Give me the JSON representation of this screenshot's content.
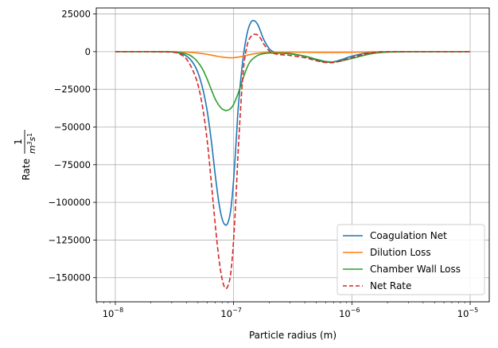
{
  "chart_data": {
    "type": "line",
    "title": "",
    "xlabel": "Particle radius (m)",
    "ylabel": "Rate",
    "ylabel_math": {
      "numerator": "1",
      "denominator_base": "m",
      "denominator_sup": "3",
      "denominator_tail": "s",
      "denominator_tail_sup": "1"
    },
    "xscale": "log",
    "xlim": [
      6.9e-09,
      1.45e-05
    ],
    "ylim": [
      -166000,
      29000
    ],
    "grid": true,
    "legend_position": "lower right",
    "xticks": [
      {
        "value": 1e-08,
        "base": "10",
        "exp": "−8"
      },
      {
        "value": 1e-07,
        "base": "10",
        "exp": "−7"
      },
      {
        "value": 1e-06,
        "base": "10",
        "exp": "−6"
      },
      {
        "value": 1e-05,
        "base": "10",
        "exp": "−5"
      }
    ],
    "yticks": [
      {
        "value": 25000,
        "label": "25000"
      },
      {
        "value": 0,
        "label": "0"
      },
      {
        "value": -25000,
        "label": "−25000"
      },
      {
        "value": -50000,
        "label": "−50000"
      },
      {
        "value": -75000,
        "label": "−75000"
      },
      {
        "value": -100000,
        "label": "−100000"
      },
      {
        "value": -125000,
        "label": "−125000"
      },
      {
        "value": -150000,
        "label": "−150000"
      }
    ],
    "series": [
      {
        "name": "Coagulation Net",
        "color": "#1f77b4",
        "dash": "solid",
        "x": [
          1e-08,
          2e-08,
          3e-08,
          3.5e-08,
          4e-08,
          4.5e-08,
          5e-08,
          5.5e-08,
          6e-08,
          6.5e-08,
          7e-08,
          7.5e-08,
          8e-08,
          8.5e-08,
          9e-08,
          9.5e-08,
          1e-07,
          1.05e-07,
          1.1e-07,
          1.2e-07,
          1.3e-07,
          1.4e-07,
          1.5e-07,
          1.6e-07,
          1.7e-07,
          1.8e-07,
          2e-07,
          2.2e-07,
          2.5e-07,
          3e-07,
          4e-07,
          5e-07,
          6e-07,
          7e-07,
          8e-07,
          1e-06,
          1.3e-06,
          1.6e-06,
          2e-06,
          3e-06,
          5e-06,
          1e-05
        ],
        "y": [
          0,
          0,
          -200,
          -1000,
          -3000,
          -7000,
          -14000,
          -25000,
          -40000,
          -60000,
          -82000,
          -100000,
          -111000,
          -115000,
          -113000,
          -104000,
          -85000,
          -60000,
          -35000,
          -5000,
          12000,
          19500,
          20500,
          18000,
          13000,
          8000,
          2000,
          -200,
          -1000,
          -1200,
          -3000,
          -5500,
          -7000,
          -6700,
          -5500,
          -3000,
          -1000,
          -300,
          -50,
          0,
          0,
          0
        ]
      },
      {
        "name": "Dilution Loss",
        "color": "#ff7f0e",
        "dash": "solid",
        "x": [
          1e-08,
          2e-08,
          3e-08,
          4e-08,
          5e-08,
          6e-08,
          7e-08,
          8e-08,
          9e-08,
          1e-07,
          1.1e-07,
          1.2e-07,
          1.4e-07,
          1.6e-07,
          2e-07,
          2.5e-07,
          3e-07,
          4e-07,
          5e-07,
          6e-07,
          7e-07,
          8e-07,
          1e-06,
          1.3e-06,
          1.6e-06,
          2e-06,
          3e-06,
          5e-06,
          1e-05
        ],
        "y": [
          0,
          0,
          -50,
          -300,
          -900,
          -1800,
          -2800,
          -3600,
          -4000,
          -4000,
          -3600,
          -3000,
          -1800,
          -1000,
          -400,
          -300,
          -300,
          -400,
          -500,
          -550,
          -550,
          -500,
          -400,
          -200,
          -80,
          -20,
          0,
          0,
          0
        ]
      },
      {
        "name": "Chamber Wall Loss",
        "color": "#2ca02c",
        "dash": "solid",
        "x": [
          1e-08,
          2e-08,
          3e-08,
          4e-08,
          4.5e-08,
          5e-08,
          5.5e-08,
          6e-08,
          6.5e-08,
          7e-08,
          7.5e-08,
          8e-08,
          8.5e-08,
          9e-08,
          9.5e-08,
          1e-07,
          1.1e-07,
          1.2e-07,
          1.3e-07,
          1.4e-07,
          1.6e-07,
          1.8e-07,
          2e-07,
          2.5e-07,
          3e-07,
          4e-07,
          5e-07,
          6e-07,
          7e-07,
          8e-07,
          1e-06,
          1.3e-06,
          1.6e-06,
          2e-06,
          3e-06,
          5e-06,
          1e-05
        ],
        "y": [
          0,
          0,
          -100,
          -1500,
          -3500,
          -7000,
          -12000,
          -18500,
          -25500,
          -31500,
          -35500,
          -38000,
          -39000,
          -38800,
          -37500,
          -35000,
          -27000,
          -18000,
          -10500,
          -6000,
          -2500,
          -1300,
          -900,
          -1000,
          -1500,
          -3000,
          -5000,
          -6500,
          -6800,
          -6300,
          -4500,
          -2200,
          -900,
          -300,
          -30,
          0,
          0
        ]
      },
      {
        "name": "Net Rate",
        "color": "#d62728",
        "dash": "dashed",
        "x": [
          1e-08,
          2e-08,
          3e-08,
          3.5e-08,
          4e-08,
          4.5e-08,
          5e-08,
          5.5e-08,
          6e-08,
          6.5e-08,
          7e-08,
          7.5e-08,
          8e-08,
          8.5e-08,
          9e-08,
          9.5e-08,
          1e-07,
          1.05e-07,
          1.1e-07,
          1.2e-07,
          1.3e-07,
          1.4e-07,
          1.5e-07,
          1.6e-07,
          1.7e-07,
          1.8e-07,
          2e-07,
          2.2e-07,
          2.5e-07,
          3e-07,
          4e-07,
          5e-07,
          6e-07,
          7e-07,
          8e-07,
          1e-06,
          1.3e-06,
          1.6e-06,
          2e-06,
          3e-06,
          5e-06,
          1e-05
        ],
        "y": [
          0,
          0,
          -300,
          -1500,
          -5000,
          -12000,
          -22000,
          -38000,
          -60000,
          -88000,
          -115000,
          -137000,
          -151000,
          -157000,
          -155000,
          -146000,
          -125000,
          -95000,
          -62000,
          -15000,
          4000,
          10000,
          11500,
          11000,
          8500,
          5000,
          500,
          -1200,
          -2000,
          -2500,
          -4000,
          -6000,
          -7200,
          -7200,
          -6200,
          -4000,
          -1500,
          -400,
          -60,
          0,
          0,
          0
        ]
      }
    ]
  }
}
